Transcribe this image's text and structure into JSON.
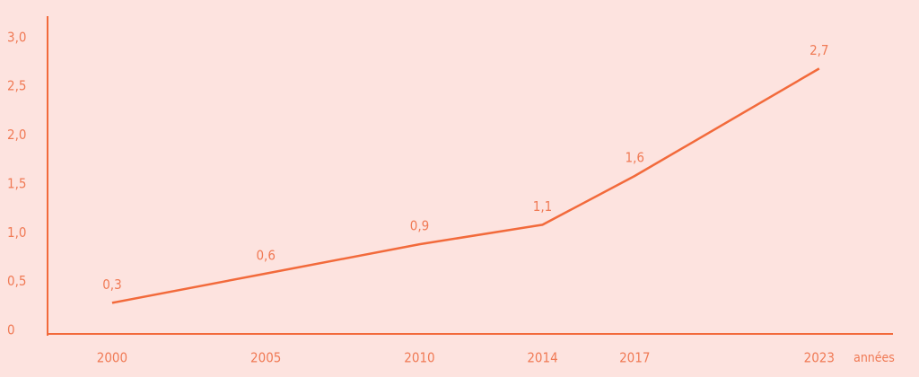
{
  "chart_data": {
    "type": "line",
    "x": [
      2000,
      2005,
      2010,
      2014,
      2017,
      2023
    ],
    "series": [
      {
        "color": "#f26a3b",
        "values": [
          0.3,
          0.6,
          0.9,
          1.1,
          1.6,
          2.7
        ],
        "value_labels": [
          "0,3",
          "0,6",
          "0,9",
          "1,1",
          "1,6",
          "2,7"
        ]
      }
    ],
    "x_label": "années",
    "xlim": [
      1997.9,
      2025.4
    ],
    "xticks": [
      2000,
      2005,
      2010,
      2014,
      2017,
      2023
    ],
    "ylim": [
      0,
      3.2
    ],
    "yticks": [
      0,
      {
        "value": 0.5,
        "label": "0,5"
      },
      {
        "value": 1,
        "label": "1,0"
      },
      {
        "value": 1.5,
        "label": "1,5"
      },
      {
        "value": 2,
        "label": "2,0"
      },
      {
        "value": 2.5,
        "label": "2,5"
      },
      {
        "value": 3,
        "label": "3,0"
      }
    ],
    "grid": false
  }
}
